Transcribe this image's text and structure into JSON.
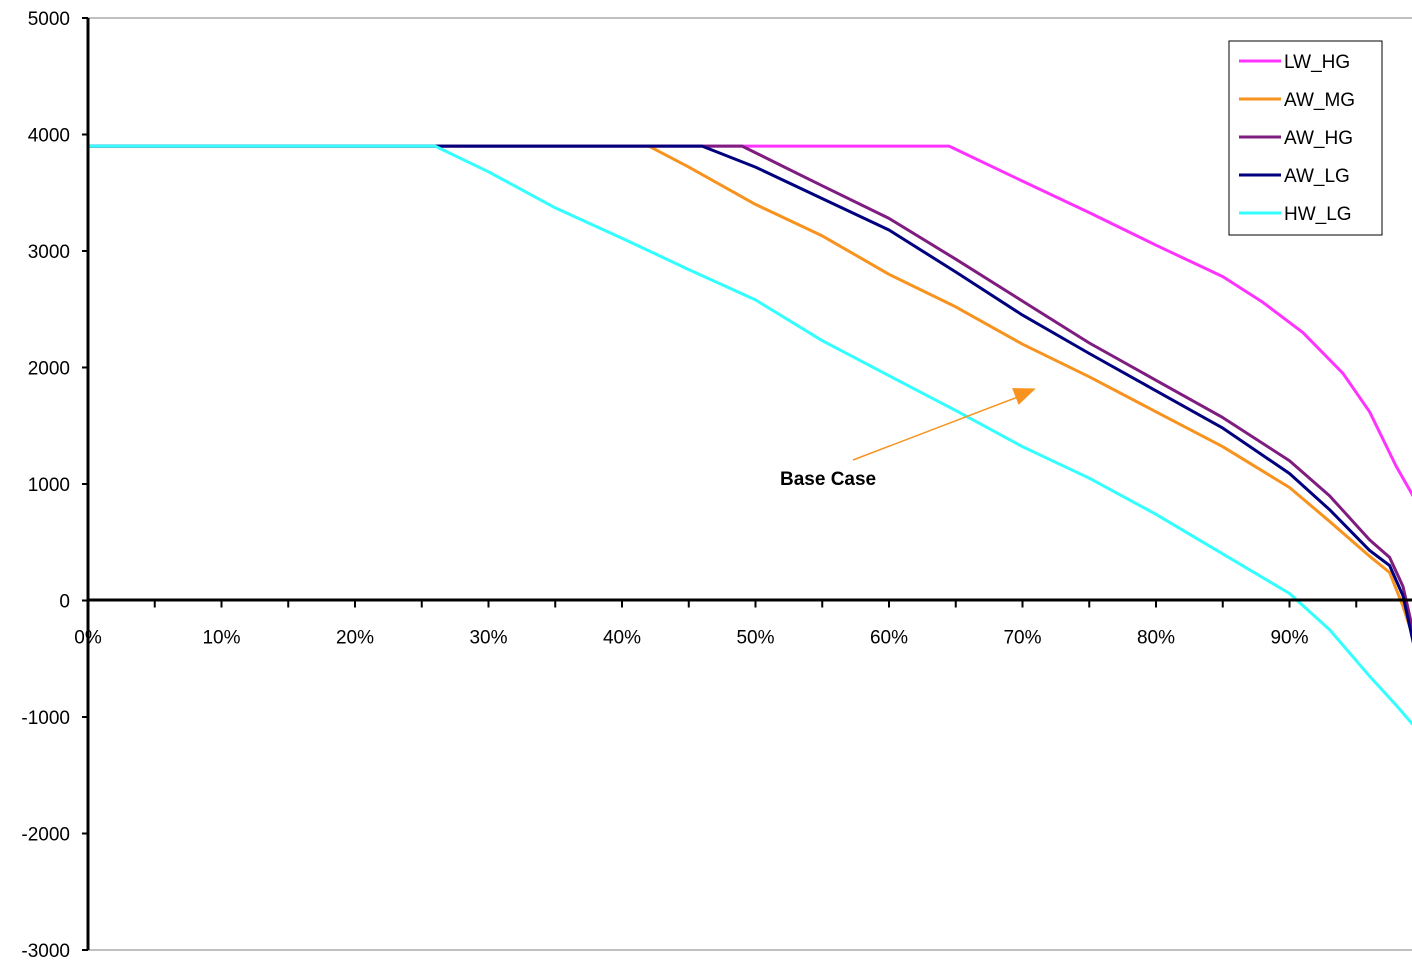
{
  "chart_data": {
    "type": "line",
    "xlabel": "",
    "ylabel": "",
    "xlim": [
      0,
      1
    ],
    "ylim": [
      -3000,
      5000
    ],
    "grid": false,
    "legend_placement": "top-right",
    "y_ticks": [
      "5000",
      "4000",
      "3000",
      "2000",
      "1000",
      "0",
      "-1000",
      "-2000",
      "-3000"
    ],
    "x_ticks": [
      "0%",
      "10%",
      "20%",
      "30%",
      "40%",
      "50%",
      "60%",
      "70%",
      "80%",
      "90%"
    ],
    "annotation": {
      "text": "Base Case",
      "x": 0.75,
      "y": 1000,
      "arrow_to_x": 0.71,
      "arrow_to_y": 1820,
      "color": "#f7931e"
    },
    "series": [
      {
        "name": "LW_HG",
        "color": "#ff33ff",
        "points": [
          [
            0.0,
            3900
          ],
          [
            0.645,
            3900
          ],
          [
            0.7,
            3600
          ],
          [
            0.75,
            3330
          ],
          [
            0.8,
            3050
          ],
          [
            0.85,
            2780
          ],
          [
            0.88,
            2560
          ],
          [
            0.91,
            2300
          ],
          [
            0.94,
            1950
          ],
          [
            0.96,
            1620
          ],
          [
            0.98,
            1150
          ],
          [
            0.995,
            850
          ]
        ]
      },
      {
        "name": "AW_MG",
        "color": "#f7931e",
        "points": [
          [
            0.0,
            3900
          ],
          [
            0.42,
            3900
          ],
          [
            0.45,
            3720
          ],
          [
            0.5,
            3400
          ],
          [
            0.55,
            3130
          ],
          [
            0.6,
            2800
          ],
          [
            0.65,
            2520
          ],
          [
            0.7,
            2200
          ],
          [
            0.75,
            1920
          ],
          [
            0.8,
            1620
          ],
          [
            0.85,
            1320
          ],
          [
            0.9,
            970
          ],
          [
            0.93,
            680
          ],
          [
            0.96,
            380
          ],
          [
            0.975,
            240
          ],
          [
            0.985,
            -50
          ],
          [
            0.995,
            -400
          ]
        ]
      },
      {
        "name": "AW_HG",
        "color": "#7f1c7f",
        "points": [
          [
            0.0,
            3900
          ],
          [
            0.49,
            3900
          ],
          [
            0.52,
            3730
          ],
          [
            0.55,
            3560
          ],
          [
            0.6,
            3280
          ],
          [
            0.65,
            2930
          ],
          [
            0.7,
            2570
          ],
          [
            0.75,
            2210
          ],
          [
            0.8,
            1890
          ],
          [
            0.85,
            1570
          ],
          [
            0.9,
            1200
          ],
          [
            0.93,
            900
          ],
          [
            0.96,
            520
          ],
          [
            0.975,
            370
          ],
          [
            0.985,
            120
          ],
          [
            0.995,
            -380
          ]
        ]
      },
      {
        "name": "AW_LG",
        "color": "#00007f",
        "points": [
          [
            0.0,
            3900
          ],
          [
            0.46,
            3900
          ],
          [
            0.5,
            3720
          ],
          [
            0.55,
            3450
          ],
          [
            0.6,
            3180
          ],
          [
            0.65,
            2820
          ],
          [
            0.7,
            2450
          ],
          [
            0.75,
            2120
          ],
          [
            0.8,
            1800
          ],
          [
            0.85,
            1480
          ],
          [
            0.9,
            1090
          ],
          [
            0.93,
            780
          ],
          [
            0.96,
            430
          ],
          [
            0.975,
            300
          ],
          [
            0.985,
            40
          ],
          [
            0.995,
            -480
          ]
        ]
      },
      {
        "name": "HW_LG",
        "color": "#33ffff",
        "points": [
          [
            0.0,
            3900
          ],
          [
            0.26,
            3900
          ],
          [
            0.3,
            3680
          ],
          [
            0.35,
            3370
          ],
          [
            0.4,
            3110
          ],
          [
            0.45,
            2840
          ],
          [
            0.5,
            2580
          ],
          [
            0.55,
            2230
          ],
          [
            0.6,
            1930
          ],
          [
            0.65,
            1630
          ],
          [
            0.7,
            1320
          ],
          [
            0.75,
            1050
          ],
          [
            0.8,
            740
          ],
          [
            0.85,
            400
          ],
          [
            0.9,
            60
          ],
          [
            0.93,
            -250
          ],
          [
            0.96,
            -650
          ],
          [
            0.98,
            -900
          ],
          [
            0.995,
            -1100
          ]
        ]
      }
    ]
  }
}
